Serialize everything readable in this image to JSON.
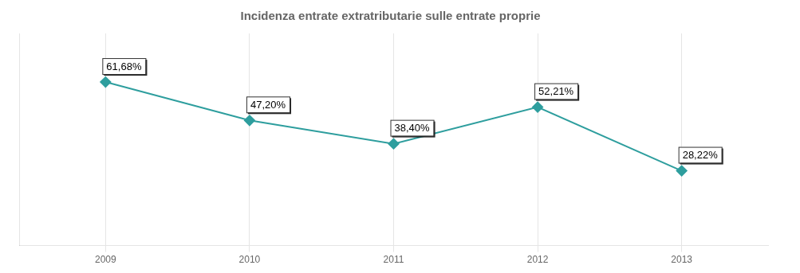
{
  "chart_data": {
    "type": "line",
    "title": "Incidenza entrate extratributarie sulle entrate proprie",
    "x": [
      2009,
      2010,
      2011,
      2012,
      2013
    ],
    "values": [
      61.68,
      47.2,
      38.4,
      52.21,
      28.22
    ],
    "value_labels": [
      "61,68%",
      "47,20%",
      "38,40%",
      "52,21%",
      "28,22%"
    ],
    "data_labels": true,
    "color": "#2E9E9E",
    "marker": "diamond",
    "xlim": [
      2008.4,
      2013.6
    ],
    "xticks": [
      2009,
      2010,
      2011,
      2012,
      2013
    ],
    "ylim": [
      0,
      80
    ],
    "grid": true,
    "tick_labels": "x"
  }
}
